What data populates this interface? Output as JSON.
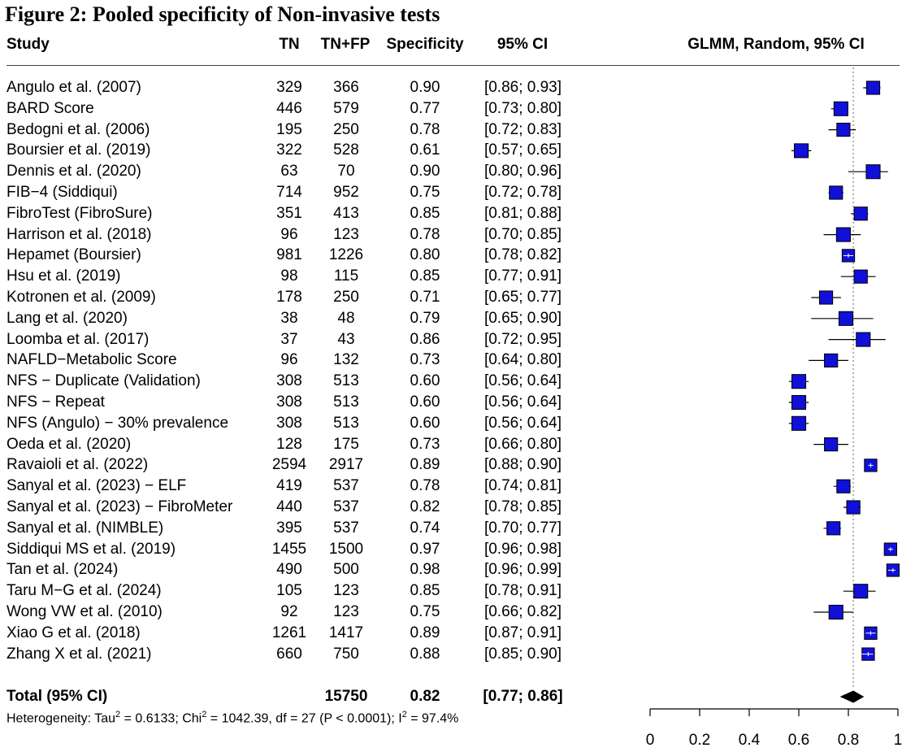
{
  "figure_title": "Figure 2: Pooled specificity of Non-invasive tests",
  "headers": {
    "study": "Study",
    "tn": "TN",
    "tnfp": "TN+FP",
    "specificity": "Specificity",
    "ci": "95% CI",
    "plot": "GLMM, Random, 95% CI"
  },
  "chart_data": {
    "type": "forest",
    "xlim": [
      0,
      1
    ],
    "xticks": [
      "0",
      "0.2",
      "0.4",
      "0.6",
      "0.8",
      "1"
    ],
    "xtick_values": [
      0,
      0.2,
      0.4,
      0.6,
      0.8,
      1
    ],
    "reference_line": 0.82,
    "studies": [
      {
        "study": "Angulo et al. (2007)",
        "tn": "329",
        "tnfp": "366",
        "spec": "0.90",
        "ci": "[0.86; 0.93]",
        "est": 0.9,
        "lo": 0.86,
        "hi": 0.93,
        "weight": 0.9
      },
      {
        "study": "BARD Score",
        "tn": "446",
        "tnfp": "579",
        "spec": "0.77",
        "ci": "[0.73; 0.80]",
        "est": 0.77,
        "lo": 0.73,
        "hi": 0.8,
        "weight": 0.95
      },
      {
        "study": "Bedogni et al. (2006)",
        "tn": "195",
        "tnfp": "250",
        "spec": "0.78",
        "ci": "[0.72; 0.83]",
        "est": 0.78,
        "lo": 0.72,
        "hi": 0.83,
        "weight": 0.9
      },
      {
        "study": "Boursier et al. (2019)",
        "tn": "322",
        "tnfp": "528",
        "spec": "0.61",
        "ci": "[0.57; 0.65]",
        "est": 0.61,
        "lo": 0.57,
        "hi": 0.65,
        "weight": 0.95
      },
      {
        "study": "Dennis et al. (2020)",
        "tn": "63",
        "tnfp": "70",
        "spec": "0.90",
        "ci": "[0.80; 0.96]",
        "est": 0.9,
        "lo": 0.8,
        "hi": 0.96,
        "weight": 0.95
      },
      {
        "study": "FIB−4 (Siddiqui)",
        "tn": "714",
        "tnfp": "952",
        "spec": "0.75",
        "ci": "[0.72; 0.78]",
        "est": 0.75,
        "lo": 0.72,
        "hi": 0.78,
        "weight": 0.9
      },
      {
        "study": "FibroTest (FibroSure)",
        "tn": "351",
        "tnfp": "413",
        "spec": "0.85",
        "ci": "[0.81; 0.88]",
        "est": 0.85,
        "lo": 0.81,
        "hi": 0.88,
        "weight": 0.9
      },
      {
        "study": "Harrison et al. (2018)",
        "tn": "96",
        "tnfp": "123",
        "spec": "0.78",
        "ci": "[0.70; 0.85]",
        "est": 0.78,
        "lo": 0.7,
        "hi": 0.85,
        "weight": 0.95
      },
      {
        "study": "Hepamet (Boursier)",
        "tn": "981",
        "tnfp": "1226",
        "spec": "0.80",
        "ci": "[0.78; 0.82]",
        "est": 0.8,
        "lo": 0.78,
        "hi": 0.82,
        "weight": 0.85
      },
      {
        "study": "Hsu et al. (2019)",
        "tn": "98",
        "tnfp": "115",
        "spec": "0.85",
        "ci": "[0.77; 0.91]",
        "est": 0.85,
        "lo": 0.77,
        "hi": 0.91,
        "weight": 0.9
      },
      {
        "study": "Kotronen et al. (2009)",
        "tn": "178",
        "tnfp": "250",
        "spec": "0.71",
        "ci": "[0.65; 0.77]",
        "est": 0.71,
        "lo": 0.65,
        "hi": 0.77,
        "weight": 0.9
      },
      {
        "study": "Lang et al. (2020)",
        "tn": "38",
        "tnfp": "48",
        "spec": "0.79",
        "ci": "[0.65; 0.90]",
        "est": 0.79,
        "lo": 0.65,
        "hi": 0.9,
        "weight": 0.95
      },
      {
        "study": "Loomba et al. (2017)",
        "tn": "37",
        "tnfp": "43",
        "spec": "0.86",
        "ci": "[0.72; 0.95]",
        "est": 0.86,
        "lo": 0.72,
        "hi": 0.95,
        "weight": 0.95
      },
      {
        "study": "NAFLD−Metabolic Score",
        "tn": "96",
        "tnfp": "132",
        "spec": "0.73",
        "ci": "[0.64; 0.80]",
        "est": 0.73,
        "lo": 0.64,
        "hi": 0.8,
        "weight": 0.9
      },
      {
        "study": "NFS − Duplicate (Validation)",
        "tn": "308",
        "tnfp": "513",
        "spec": "0.60",
        "ci": "[0.56; 0.64]",
        "est": 0.6,
        "lo": 0.56,
        "hi": 0.64,
        "weight": 0.95
      },
      {
        "study": "NFS − Repeat",
        "tn": "308",
        "tnfp": "513",
        "spec": "0.60",
        "ci": "[0.56; 0.64]",
        "est": 0.6,
        "lo": 0.56,
        "hi": 0.64,
        "weight": 0.95
      },
      {
        "study": "NFS (Angulo) − 30% prevalence",
        "tn": "308",
        "tnfp": "513",
        "spec": "0.60",
        "ci": "[0.56; 0.64]",
        "est": 0.6,
        "lo": 0.56,
        "hi": 0.64,
        "weight": 0.95
      },
      {
        "study": "Oeda et al. (2020)",
        "tn": "128",
        "tnfp": "175",
        "spec": "0.73",
        "ci": "[0.66; 0.80]",
        "est": 0.73,
        "lo": 0.66,
        "hi": 0.8,
        "weight": 0.9
      },
      {
        "study": "Ravaioli et al. (2022)",
        "tn": "2594",
        "tnfp": "2917",
        "spec": "0.89",
        "ci": "[0.88; 0.90]",
        "est": 0.89,
        "lo": 0.88,
        "hi": 0.9,
        "weight": 0.85
      },
      {
        "study": "Sanyal et al. (2023) − ELF",
        "tn": "419",
        "tnfp": "537",
        "spec": "0.78",
        "ci": "[0.74; 0.81]",
        "est": 0.78,
        "lo": 0.74,
        "hi": 0.81,
        "weight": 0.9
      },
      {
        "study": "Sanyal et al. (2023) − FibroMeter",
        "tn": "440",
        "tnfp": "537",
        "spec": "0.82",
        "ci": "[0.78; 0.85]",
        "est": 0.82,
        "lo": 0.78,
        "hi": 0.85,
        "weight": 0.9
      },
      {
        "study": "Sanyal et al. (NIMBLE)",
        "tn": "395",
        "tnfp": "537",
        "spec": "0.74",
        "ci": "[0.70; 0.77]",
        "est": 0.74,
        "lo": 0.7,
        "hi": 0.77,
        "weight": 0.9
      },
      {
        "study": "Siddiqui MS et al. (2019)",
        "tn": "1455",
        "tnfp": "1500",
        "spec": "0.97",
        "ci": "[0.96; 0.98]",
        "est": 0.97,
        "lo": 0.96,
        "hi": 0.98,
        "weight": 0.85
      },
      {
        "study": "Tan et al. (2024)",
        "tn": "490",
        "tnfp": "500",
        "spec": "0.98",
        "ci": "[0.96; 0.99]",
        "est": 0.98,
        "lo": 0.96,
        "hi": 0.99,
        "weight": 0.85
      },
      {
        "study": "Taru M−G et al. (2024)",
        "tn": "105",
        "tnfp": "123",
        "spec": "0.85",
        "ci": "[0.78; 0.91]",
        "est": 0.85,
        "lo": 0.78,
        "hi": 0.91,
        "weight": 0.95
      },
      {
        "study": "Wong VW et al. (2010)",
        "tn": "92",
        "tnfp": "123",
        "spec": "0.75",
        "ci": "[0.66; 0.82]",
        "est": 0.75,
        "lo": 0.66,
        "hi": 0.82,
        "weight": 0.95
      },
      {
        "study": "Xiao G et al. (2018)",
        "tn": "1261",
        "tnfp": "1417",
        "spec": "0.89",
        "ci": "[0.87; 0.91]",
        "est": 0.89,
        "lo": 0.87,
        "hi": 0.91,
        "weight": 0.85
      },
      {
        "study": "Zhang X et al. (2021)",
        "tn": "660",
        "tnfp": "750",
        "spec": "0.88",
        "ci": "[0.85; 0.90]",
        "est": 0.88,
        "lo": 0.85,
        "hi": 0.9,
        "weight": 0.85
      }
    ],
    "total": {
      "label": "Total (95% CI)",
      "tnfp": "15750",
      "spec": "0.82",
      "ci": "[0.77; 0.86]",
      "est": 0.82,
      "lo": 0.77,
      "hi": 0.86
    },
    "heterogeneity": {
      "tau_prefix": "Heterogeneity: Tau",
      "tau_sup": "2",
      "tau_rest": " = 0.6133; Chi",
      "chi_sup": "2",
      "chi_rest": " = 1042.39, df = 27 (P < 0.0001); I",
      "i_sup": "2",
      "i_rest": " = 97.4%"
    }
  },
  "colors": {
    "square_fill": "#1010d8",
    "square_stroke": "#000000",
    "diamond": "#000000",
    "ref_line": "#808080"
  }
}
